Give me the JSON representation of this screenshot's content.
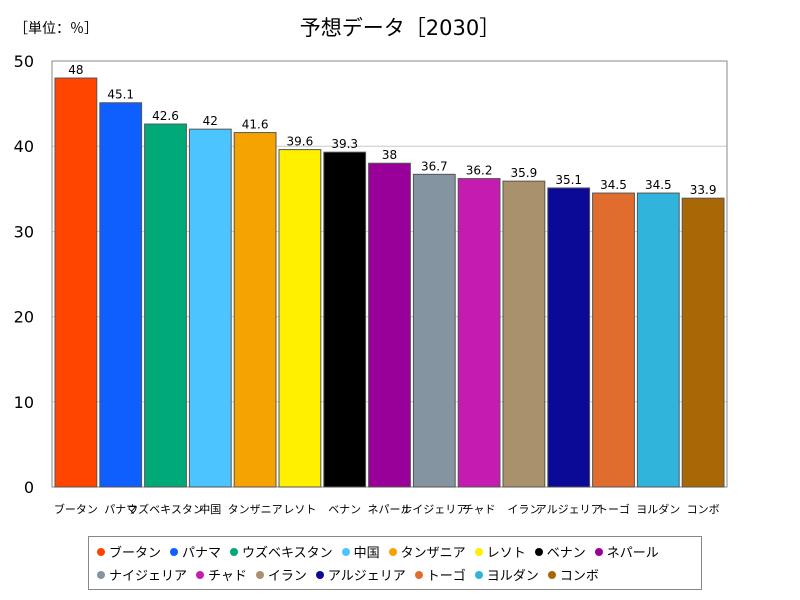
{
  "unit_label": "［単位：％］",
  "chart_data": {
    "type": "bar",
    "title": "予想データ［2030］",
    "ylim": [
      0,
      50
    ],
    "yticks": [
      0,
      10,
      20,
      30,
      40,
      50
    ],
    "grid": true,
    "legend_position": "bottom",
    "categories": [
      "ブータン",
      "パナマ",
      "ウズベキスタン",
      "中国",
      "タンザニア",
      "レソト",
      "ベナン",
      "ネパール",
      "ナイジェリア",
      "チャド",
      "イラン",
      "アルジェリア",
      "トーゴ",
      "ヨルダン",
      "コンボ"
    ],
    "values": [
      48,
      45.1,
      42.6,
      42,
      41.6,
      39.6,
      39.3,
      38,
      36.7,
      36.2,
      35.9,
      35.1,
      34.5,
      34.5,
      33.9
    ],
    "value_labels": [
      "48",
      "45.1",
      "42.6",
      "42",
      "41.6",
      "39.6",
      "39.3",
      "38",
      "36.7",
      "36.2",
      "35.9",
      "35.1",
      "34.5",
      "34.5",
      "33.9"
    ],
    "colors": [
      "#ff4500",
      "#0f5fff",
      "#00aa78",
      "#4cc4ff",
      "#f5a300",
      "#fff000",
      "#000000",
      "#990099",
      "#8495a1",
      "#c61bb0",
      "#a8916b",
      "#0a0a96",
      "#e06d2d",
      "#30b4dc",
      "#a86806"
    ]
  }
}
